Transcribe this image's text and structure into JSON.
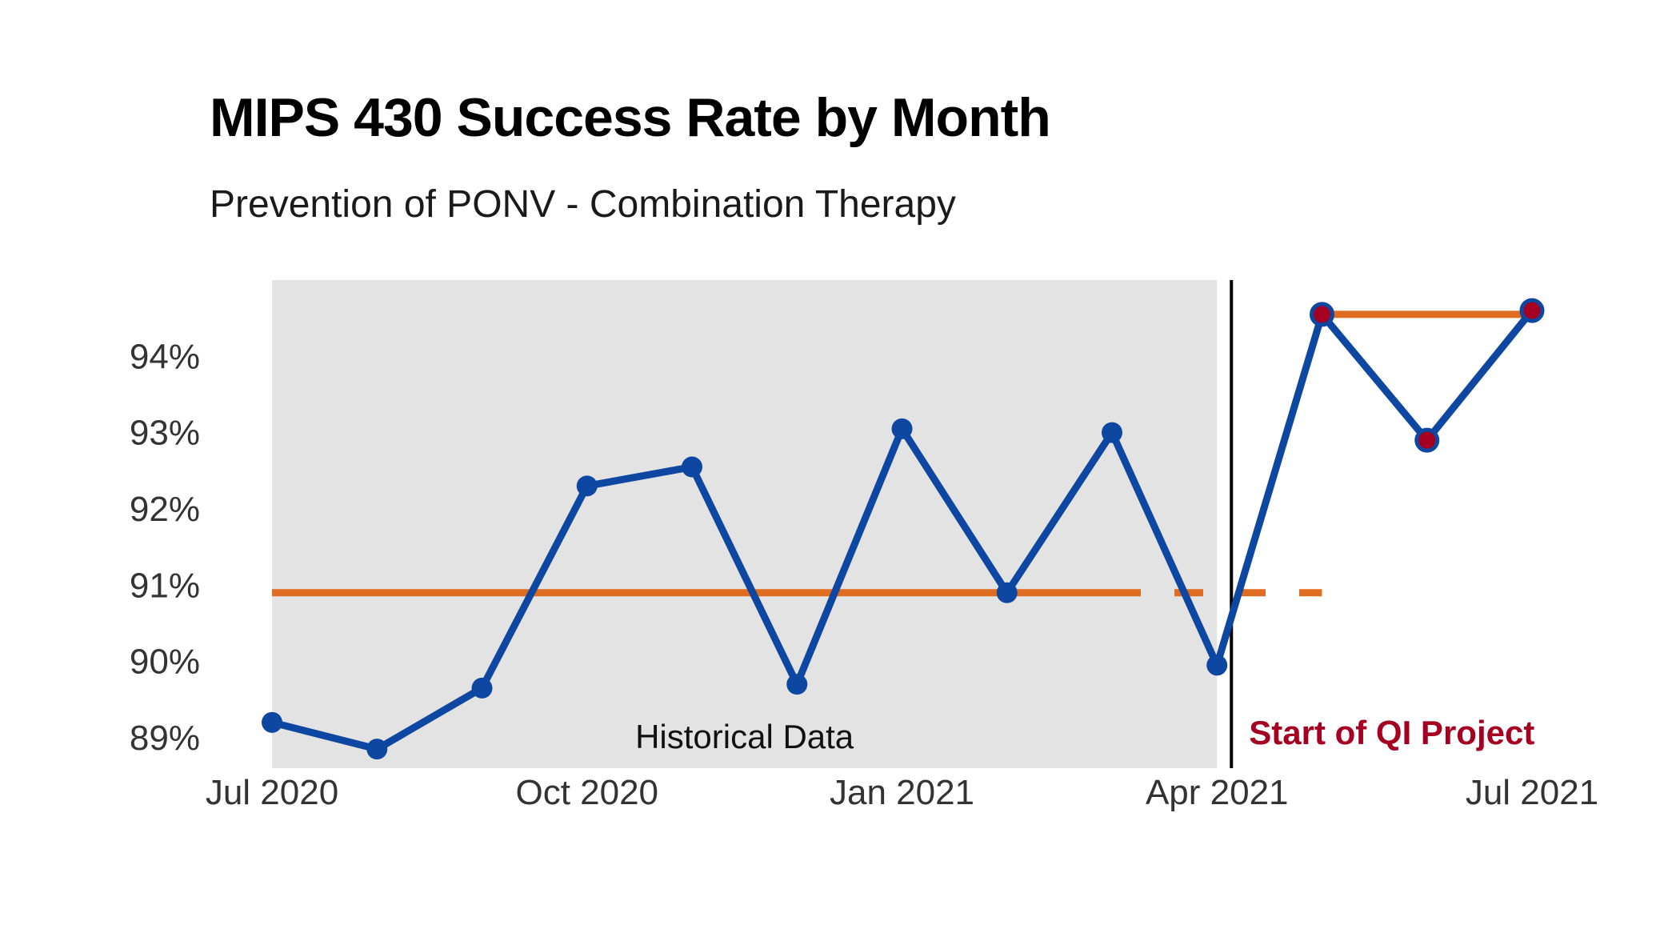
{
  "chart_data": {
    "type": "line",
    "title": "MIPS 430 Success Rate by Month",
    "subtitle": "Prevention of PONV - Combination Therapy",
    "xlabel": "",
    "ylabel": "",
    "x_ticks": [
      "Jul 2020",
      "Oct 2020",
      "Jan 2021",
      "Apr 2021",
      "Jul 2021"
    ],
    "y_ticks": [
      "89%",
      "90%",
      "91%",
      "92%",
      "93%",
      "94%"
    ],
    "ylim": [
      88.6,
      95.0
    ],
    "grid": false,
    "series": [
      {
        "values": [
          {
            "x": "2020-07",
            "y": 89.2
          },
          {
            "x": "2020-08",
            "y": 88.85
          },
          {
            "x": "2020-09",
            "y": 89.65
          },
          {
            "x": "2020-10",
            "y": 92.3
          },
          {
            "x": "2020-11",
            "y": 92.55
          },
          {
            "x": "2020-12",
            "y": 89.7
          },
          {
            "x": "2021-01",
            "y": 93.05
          },
          {
            "x": "2021-02",
            "y": 90.9
          },
          {
            "x": "2021-03",
            "y": 93.0
          },
          {
            "x": "2021-04",
            "y": 89.95
          },
          {
            "x": "2021-05",
            "y": 94.55
          },
          {
            "x": "2021-06",
            "y": 92.9
          },
          {
            "x": "2021-07",
            "y": 94.6
          }
        ],
        "color": "#0d47a1"
      }
    ],
    "reference_lines": [
      {
        "y": 90.9,
        "from": "2020-07",
        "to": "2021-03",
        "style": "solid",
        "color": "#e06c21"
      },
      {
        "y": 90.9,
        "from": "2021-03",
        "to": "2021-05",
        "style": "dashed",
        "color": "#e06c21"
      },
      {
        "y": 94.55,
        "from": "2021-05",
        "to": "2021-07",
        "style": "solid",
        "color": "#e06c21"
      }
    ],
    "shaded_region": {
      "from": "2020-07",
      "to": "2021-04",
      "label": "Historical Data",
      "color": "#e3e3e3"
    },
    "vertical_marker": {
      "x": "2021-04",
      "label": "Start of QI Project",
      "label_color": "#a50021"
    },
    "highlight_color": "#a50021"
  }
}
